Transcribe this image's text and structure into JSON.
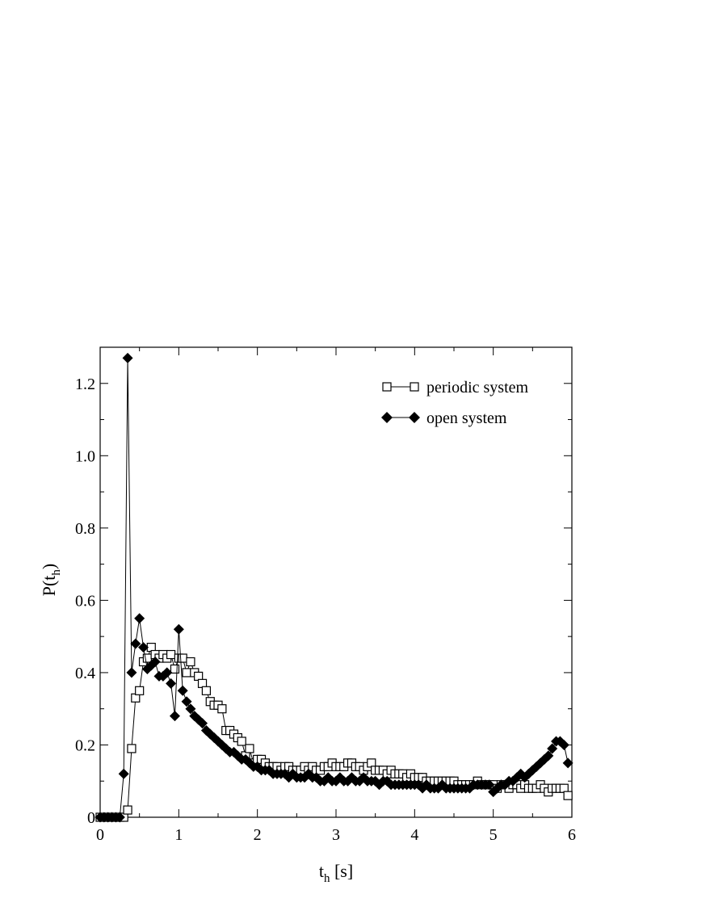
{
  "chart_data": {
    "type": "line",
    "title": "",
    "xlabel": {
      "main": "t",
      "sub": "h",
      "suffix": " [s]"
    },
    "ylabel": {
      "main": "P(t",
      "sub": "h",
      "suffix": ")"
    },
    "xlim": [
      0,
      6
    ],
    "ylim": [
      0,
      1.3
    ],
    "xticks": [
      0,
      1,
      2,
      3,
      4,
      5,
      6
    ],
    "xtick_labels": [
      "0",
      "1",
      "2",
      "3",
      "4",
      "5",
      "6"
    ],
    "yticks": [
      0,
      0.2,
      0.4,
      0.6,
      0.8,
      1.0,
      1.2
    ],
    "ytick_labels": [
      "0",
      "0.2",
      "0.4",
      "0.6",
      "0.8",
      "1.0",
      "1.2"
    ],
    "grid": false,
    "legend_position": "top-right",
    "series": [
      {
        "name": "periodic system",
        "marker": "open-square",
        "color": "#000000",
        "x": [
          0.0,
          0.05,
          0.1,
          0.15,
          0.2,
          0.25,
          0.3,
          0.35,
          0.4,
          0.45,
          0.5,
          0.55,
          0.6,
          0.65,
          0.7,
          0.75,
          0.8,
          0.85,
          0.9,
          0.95,
          1.0,
          1.05,
          1.1,
          1.15,
          1.2,
          1.25,
          1.3,
          1.35,
          1.4,
          1.45,
          1.5,
          1.55,
          1.6,
          1.65,
          1.7,
          1.75,
          1.8,
          1.85,
          1.9,
          1.95,
          2.0,
          2.05,
          2.1,
          2.15,
          2.2,
          2.25,
          2.3,
          2.35,
          2.4,
          2.45,
          2.5,
          2.55,
          2.6,
          2.65,
          2.7,
          2.75,
          2.8,
          2.85,
          2.9,
          2.95,
          3.0,
          3.05,
          3.1,
          3.15,
          3.2,
          3.25,
          3.3,
          3.35,
          3.4,
          3.45,
          3.5,
          3.55,
          3.6,
          3.65,
          3.7,
          3.75,
          3.8,
          3.85,
          3.9,
          3.95,
          4.0,
          4.05,
          4.1,
          4.15,
          4.2,
          4.25,
          4.3,
          4.35,
          4.4,
          4.45,
          4.5,
          4.55,
          4.6,
          4.65,
          4.7,
          4.75,
          4.8,
          4.85,
          4.9,
          4.95,
          5.0,
          5.05,
          5.1,
          5.15,
          5.2,
          5.25,
          5.3,
          5.35,
          5.4,
          5.45,
          5.5,
          5.55,
          5.6,
          5.65,
          5.7,
          5.75,
          5.8,
          5.85,
          5.9,
          5.95
        ],
        "y": [
          0.0,
          0.0,
          0.0,
          0.0,
          0.0,
          0.0,
          0.0,
          0.02,
          0.19,
          0.33,
          0.35,
          0.43,
          0.44,
          0.47,
          0.45,
          0.44,
          0.45,
          0.44,
          0.45,
          0.41,
          0.44,
          0.44,
          0.4,
          0.43,
          0.4,
          0.39,
          0.37,
          0.35,
          0.32,
          0.31,
          0.31,
          0.3,
          0.24,
          0.24,
          0.23,
          0.22,
          0.21,
          0.17,
          0.19,
          0.15,
          0.16,
          0.16,
          0.15,
          0.14,
          0.14,
          0.14,
          0.13,
          0.14,
          0.14,
          0.13,
          0.13,
          0.13,
          0.14,
          0.13,
          0.14,
          0.13,
          0.13,
          0.14,
          0.14,
          0.15,
          0.14,
          0.14,
          0.14,
          0.15,
          0.15,
          0.14,
          0.14,
          0.13,
          0.14,
          0.15,
          0.13,
          0.13,
          0.13,
          0.12,
          0.13,
          0.12,
          0.12,
          0.12,
          0.11,
          0.12,
          0.11,
          0.11,
          0.11,
          0.1,
          0.1,
          0.1,
          0.1,
          0.1,
          0.1,
          0.1,
          0.1,
          0.09,
          0.09,
          0.09,
          0.09,
          0.09,
          0.1,
          0.09,
          0.09,
          0.09,
          0.09,
          0.08,
          0.09,
          0.09,
          0.08,
          0.09,
          0.09,
          0.08,
          0.09,
          0.08,
          0.08,
          0.08,
          0.09,
          0.08,
          0.07,
          0.08,
          0.08,
          0.08,
          0.08,
          0.06
        ]
      },
      {
        "name": "open system",
        "marker": "filled-diamond",
        "color": "#000000",
        "x": [
          0.0,
          0.05,
          0.1,
          0.15,
          0.2,
          0.25,
          0.3,
          0.35,
          0.4,
          0.45,
          0.5,
          0.55,
          0.6,
          0.65,
          0.7,
          0.75,
          0.8,
          0.85,
          0.9,
          0.95,
          1.0,
          1.05,
          1.1,
          1.15,
          1.2,
          1.25,
          1.3,
          1.35,
          1.4,
          1.45,
          1.5,
          1.55,
          1.6,
          1.65,
          1.7,
          1.75,
          1.8,
          1.85,
          1.9,
          1.95,
          2.0,
          2.05,
          2.1,
          2.15,
          2.2,
          2.25,
          2.3,
          2.35,
          2.4,
          2.45,
          2.5,
          2.55,
          2.6,
          2.65,
          2.7,
          2.75,
          2.8,
          2.85,
          2.9,
          2.95,
          3.0,
          3.05,
          3.1,
          3.15,
          3.2,
          3.25,
          3.3,
          3.35,
          3.4,
          3.45,
          3.5,
          3.55,
          3.6,
          3.65,
          3.7,
          3.75,
          3.8,
          3.85,
          3.9,
          3.95,
          4.0,
          4.05,
          4.1,
          4.15,
          4.2,
          4.25,
          4.3,
          4.35,
          4.4,
          4.45,
          4.5,
          4.55,
          4.6,
          4.65,
          4.7,
          4.75,
          4.8,
          4.85,
          4.9,
          4.95,
          5.0,
          5.05,
          5.1,
          5.15,
          5.2,
          5.25,
          5.3,
          5.35,
          5.4,
          5.45,
          5.5,
          5.55,
          5.6,
          5.65,
          5.7,
          5.75,
          5.8,
          5.85,
          5.9,
          5.95
        ],
        "y": [
          0.0,
          0.0,
          0.0,
          0.0,
          0.0,
          0.0,
          0.12,
          1.27,
          0.4,
          0.48,
          0.55,
          0.47,
          0.41,
          0.42,
          0.43,
          0.39,
          0.39,
          0.4,
          0.37,
          0.28,
          0.52,
          0.35,
          0.32,
          0.3,
          0.28,
          0.27,
          0.26,
          0.24,
          0.23,
          0.22,
          0.21,
          0.2,
          0.19,
          0.18,
          0.18,
          0.17,
          0.16,
          0.16,
          0.15,
          0.14,
          0.14,
          0.13,
          0.13,
          0.13,
          0.12,
          0.12,
          0.12,
          0.12,
          0.11,
          0.12,
          0.11,
          0.11,
          0.11,
          0.12,
          0.11,
          0.11,
          0.1,
          0.1,
          0.11,
          0.1,
          0.1,
          0.11,
          0.1,
          0.1,
          0.11,
          0.1,
          0.1,
          0.11,
          0.1,
          0.1,
          0.1,
          0.09,
          0.1,
          0.1,
          0.09,
          0.09,
          0.09,
          0.09,
          0.09,
          0.09,
          0.09,
          0.09,
          0.08,
          0.09,
          0.08,
          0.08,
          0.08,
          0.09,
          0.08,
          0.08,
          0.08,
          0.08,
          0.08,
          0.08,
          0.08,
          0.09,
          0.09,
          0.09,
          0.09,
          0.09,
          0.07,
          0.08,
          0.09,
          0.09,
          0.1,
          0.1,
          0.11,
          0.12,
          0.11,
          0.12,
          0.13,
          0.14,
          0.15,
          0.16,
          0.17,
          0.19,
          0.21,
          0.21,
          0.2,
          0.15
        ]
      }
    ]
  }
}
